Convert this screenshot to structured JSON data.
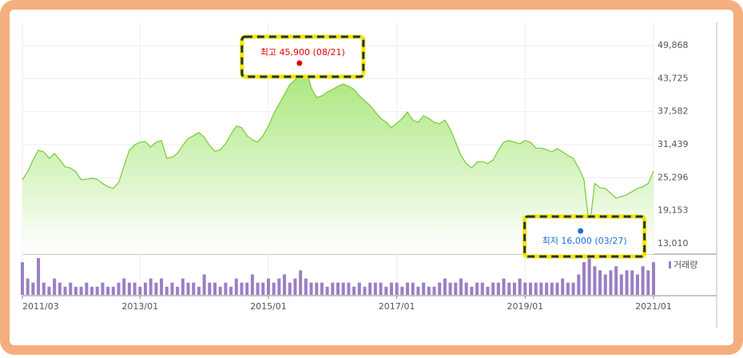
{
  "chart_data": {
    "type": "line",
    "x": [
      "2011/03",
      "2011/04",
      "2011/05",
      "2011/06",
      "2011/07",
      "2011/08",
      "2011/09",
      "2011/10",
      "2011/11",
      "2011/12",
      "2012/01",
      "2012/02",
      "2012/03",
      "2012/04",
      "2012/05",
      "2012/06",
      "2012/07",
      "2012/08",
      "2012/09",
      "2012/10",
      "2012/11",
      "2012/12",
      "2013/01",
      "2013/02",
      "2013/03",
      "2013/04",
      "2013/05",
      "2013/06",
      "2013/07",
      "2013/08",
      "2013/09",
      "2013/10",
      "2013/11",
      "2013/12",
      "2014/01",
      "2014/02",
      "2014/03",
      "2014/04",
      "2014/05",
      "2014/06",
      "2014/07",
      "2014/08",
      "2014/09",
      "2014/10",
      "2014/11",
      "2014/12",
      "2015/01",
      "2015/02",
      "2015/03",
      "2015/04",
      "2015/05",
      "2015/06",
      "2015/07",
      "2015/08",
      "2015/09",
      "2015/10",
      "2015/11",
      "2015/12",
      "2016/01",
      "2016/02",
      "2016/03",
      "2016/04",
      "2016/05",
      "2016/06",
      "2016/07",
      "2016/08",
      "2016/09",
      "2016/10",
      "2016/11",
      "2016/12",
      "2017/01",
      "2017/02",
      "2017/03",
      "2017/04",
      "2017/05",
      "2017/06",
      "2017/07",
      "2017/08",
      "2017/09",
      "2017/10",
      "2017/11",
      "2017/12",
      "2018/01",
      "2018/02",
      "2018/03",
      "2018/04",
      "2018/05",
      "2018/06",
      "2018/07",
      "2018/08",
      "2018/09",
      "2018/10",
      "2018/11",
      "2018/12",
      "2019/01",
      "2019/02",
      "2019/03",
      "2019/04",
      "2019/05",
      "2019/06",
      "2019/07",
      "2019/08",
      "2019/09",
      "2019/10",
      "2019/11",
      "2019/12",
      "2020/01",
      "2020/02",
      "2020/03",
      "2020/04",
      "2020/05",
      "2020/06",
      "2020/07",
      "2020/08",
      "2020/09",
      "2020/10",
      "2020/11",
      "2020/12",
      "2021/01"
    ],
    "xticks": [
      "2011/03",
      "2013/01",
      "2015/01",
      "2017/01",
      "2019/01",
      "2021/01"
    ],
    "ylim": [
      11078,
      54178
    ],
    "yticks": [
      {
        "value": 13010,
        "label": "13,010"
      },
      {
        "value": 19153,
        "label": "19,153"
      },
      {
        "value": 25296,
        "label": "25,296"
      },
      {
        "value": 31439,
        "label": "31,439"
      },
      {
        "value": 37582,
        "label": "37,582"
      },
      {
        "value": 43725,
        "label": "43,725"
      },
      {
        "value": 49868,
        "label": "49,868"
      }
    ],
    "grid": true,
    "series": [
      {
        "color": "#77cc33",
        "values": [
          24900,
          26400,
          28600,
          30400,
          30100,
          28900,
          29800,
          28600,
          27300,
          27100,
          26400,
          24900,
          25000,
          25200,
          25000,
          24200,
          23600,
          23300,
          24400,
          27400,
          30400,
          31400,
          31900,
          32000,
          31000,
          31900,
          32200,
          28900,
          29100,
          29800,
          31300,
          32600,
          33100,
          33700,
          32800,
          31300,
          30200,
          30500,
          31600,
          33400,
          34900,
          34600,
          33100,
          32300,
          31900,
          33100,
          34900,
          37200,
          39000,
          40800,
          42600,
          43500,
          44400,
          45900,
          42000,
          40200,
          40500,
          41200,
          41700,
          42300,
          42700,
          42300,
          41700,
          40500,
          39600,
          38700,
          37500,
          36300,
          35600,
          34600,
          35400,
          36300,
          37500,
          36000,
          35600,
          36800,
          36300,
          35600,
          35300,
          36000,
          34300,
          31900,
          29400,
          27900,
          27100,
          28200,
          28300,
          27900,
          28600,
          30400,
          31900,
          32200,
          31900,
          31600,
          32200,
          31900,
          30800,
          30800,
          30500,
          30100,
          30700,
          30100,
          29400,
          28900,
          27100,
          24900,
          16000,
          24200,
          23400,
          23300,
          22400,
          21500,
          21800,
          22100,
          22700,
          23300,
          23600,
          24200,
          26500
        ]
      }
    ],
    "volume": {
      "type": "bar",
      "name": "거래량",
      "color": "#9b7fc4",
      "values": [
        8,
        4,
        3,
        9,
        3,
        2,
        4,
        3,
        2,
        3,
        2,
        2,
        3,
        2,
        2,
        3,
        2,
        2,
        3,
        4,
        3,
        3,
        2,
        3,
        4,
        3,
        4,
        2,
        3,
        2,
        4,
        3,
        3,
        2,
        5,
        3,
        3,
        2,
        3,
        2,
        4,
        3,
        3,
        5,
        3,
        3,
        4,
        3,
        4,
        5,
        3,
        4,
        6,
        4,
        3,
        3,
        3,
        2,
        3,
        3,
        3,
        3,
        2,
        3,
        2,
        3,
        3,
        3,
        2,
        3,
        3,
        2,
        3,
        3,
        2,
        3,
        2,
        2,
        3,
        4,
        3,
        3,
        4,
        3,
        2,
        3,
        3,
        2,
        3,
        3,
        4,
        3,
        3,
        4,
        3,
        3,
        3,
        3,
        3,
        3,
        3,
        4,
        3,
        3,
        5,
        8,
        9,
        7,
        6,
        5,
        6,
        7,
        5,
        6,
        6,
        5,
        7,
        6,
        8
      ]
    },
    "annotations": {
      "high": {
        "text": "최고 45,900 (08/21)",
        "color": "#e60000"
      },
      "low": {
        "text": "최저 16,000 (03/27)",
        "color": "#1a6fd6"
      }
    }
  }
}
